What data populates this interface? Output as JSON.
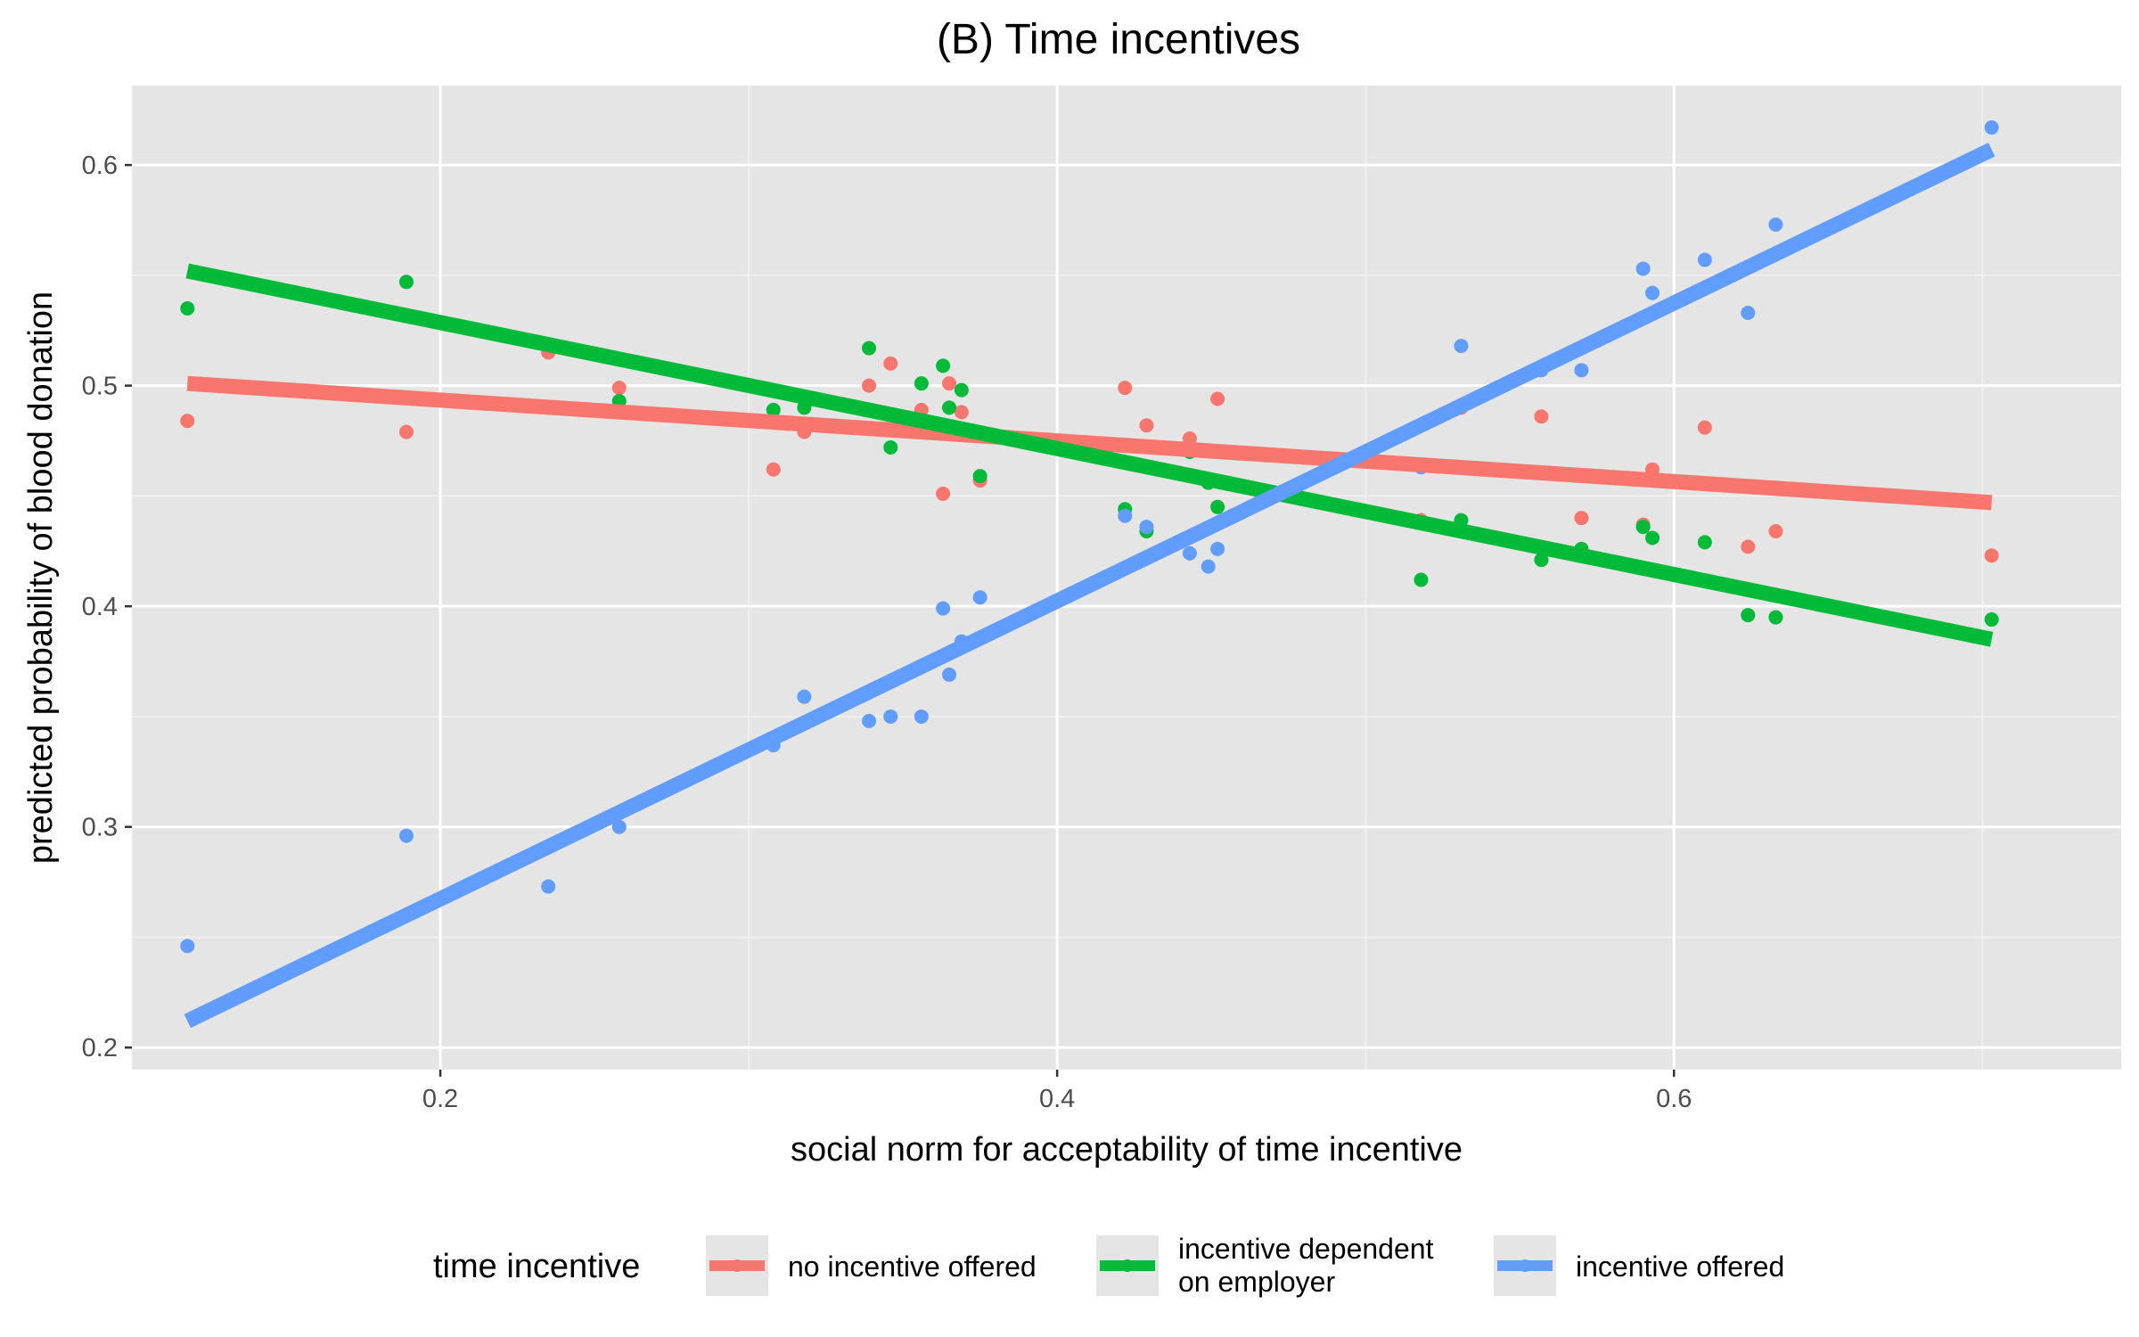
{
  "chart_data": {
    "type": "scatter",
    "title": "(B) Time incentives",
    "xlabel": "social norm for acceptability of time incentive",
    "ylabel": "predicted probability of blood donation",
    "xlim": [
      0.1,
      0.745
    ],
    "ylim": [
      0.19,
      0.636
    ],
    "x_ticks": [
      0.2,
      0.4,
      0.6
    ],
    "x_tick_labels": [
      "0.2",
      "0.4",
      "0.6"
    ],
    "y_ticks": [
      0.2,
      0.3,
      0.4,
      0.5,
      0.6
    ],
    "y_tick_labels": [
      "0.2",
      "0.3",
      "0.4",
      "0.5",
      "0.6"
    ],
    "grid": true,
    "background": "#e5e5e5",
    "legend": {
      "title": "time incentive",
      "position": "bottom",
      "entries": [
        {
          "series": "no incentive offered",
          "lines": [
            "no incentive offered"
          ]
        },
        {
          "series": "incentive dependent on employer",
          "lines": [
            "incentive dependent",
            "on employer"
          ]
        },
        {
          "series": "incentive offered",
          "lines": [
            "incentive offered"
          ]
        }
      ]
    },
    "series": [
      {
        "name": "no incentive offered",
        "color": "#f8766d",
        "fit_line": {
          "x": [
            0.118,
            0.703
          ],
          "y": [
            0.501,
            0.447
          ]
        },
        "points": [
          [
            0.118,
            0.484
          ],
          [
            0.189,
            0.479
          ],
          [
            0.235,
            0.515
          ],
          [
            0.258,
            0.499
          ],
          [
            0.308,
            0.462
          ],
          [
            0.318,
            0.479
          ],
          [
            0.339,
            0.5
          ],
          [
            0.346,
            0.51
          ],
          [
            0.356,
            0.489
          ],
          [
            0.363,
            0.451
          ],
          [
            0.365,
            0.501
          ],
          [
            0.369,
            0.488
          ],
          [
            0.375,
            0.457
          ],
          [
            0.422,
            0.499
          ],
          [
            0.429,
            0.482
          ],
          [
            0.443,
            0.476
          ],
          [
            0.449,
            0.456
          ],
          [
            0.452,
            0.494
          ],
          [
            0.518,
            0.439
          ],
          [
            0.531,
            0.49
          ],
          [
            0.557,
            0.486
          ],
          [
            0.57,
            0.44
          ],
          [
            0.59,
            0.437
          ],
          [
            0.593,
            0.462
          ],
          [
            0.61,
            0.481
          ],
          [
            0.624,
            0.427
          ],
          [
            0.633,
            0.434
          ],
          [
            0.703,
            0.423
          ]
        ]
      },
      {
        "name": "incentive dependent on employer",
        "color": "#00ba38",
        "fit_line": {
          "x": [
            0.118,
            0.703
          ],
          "y": [
            0.552,
            0.385
          ]
        },
        "points": [
          [
            0.118,
            0.535
          ],
          [
            0.189,
            0.547
          ],
          [
            0.235,
            0.49
          ],
          [
            0.258,
            0.493
          ],
          [
            0.308,
            0.489
          ],
          [
            0.318,
            0.49
          ],
          [
            0.339,
            0.517
          ],
          [
            0.346,
            0.472
          ],
          [
            0.356,
            0.501
          ],
          [
            0.363,
            0.509
          ],
          [
            0.365,
            0.49
          ],
          [
            0.369,
            0.498
          ],
          [
            0.375,
            0.459
          ],
          [
            0.422,
            0.444
          ],
          [
            0.429,
            0.434
          ],
          [
            0.443,
            0.47
          ],
          [
            0.449,
            0.456
          ],
          [
            0.452,
            0.445
          ],
          [
            0.518,
            0.412
          ],
          [
            0.531,
            0.439
          ],
          [
            0.557,
            0.421
          ],
          [
            0.57,
            0.426
          ],
          [
            0.59,
            0.436
          ],
          [
            0.593,
            0.431
          ],
          [
            0.61,
            0.429
          ],
          [
            0.624,
            0.396
          ],
          [
            0.633,
            0.395
          ],
          [
            0.703,
            0.394
          ]
        ]
      },
      {
        "name": "incentive offered",
        "color": "#619cff",
        "fit_line": {
          "x": [
            0.118,
            0.703
          ],
          "y": [
            0.212,
            0.607
          ]
        },
        "points": [
          [
            0.118,
            0.246
          ],
          [
            0.189,
            0.296
          ],
          [
            0.235,
            0.273
          ],
          [
            0.258,
            0.3
          ],
          [
            0.308,
            0.337
          ],
          [
            0.318,
            0.359
          ],
          [
            0.339,
            0.348
          ],
          [
            0.346,
            0.35
          ],
          [
            0.356,
            0.35
          ],
          [
            0.363,
            0.399
          ],
          [
            0.365,
            0.369
          ],
          [
            0.369,
            0.384
          ],
          [
            0.375,
            0.404
          ],
          [
            0.422,
            0.441
          ],
          [
            0.429,
            0.436
          ],
          [
            0.443,
            0.424
          ],
          [
            0.449,
            0.418
          ],
          [
            0.452,
            0.426
          ],
          [
            0.518,
            0.463
          ],
          [
            0.531,
            0.518
          ],
          [
            0.557,
            0.507
          ],
          [
            0.57,
            0.507
          ],
          [
            0.59,
            0.553
          ],
          [
            0.593,
            0.542
          ],
          [
            0.61,
            0.557
          ],
          [
            0.624,
            0.533
          ],
          [
            0.633,
            0.573
          ],
          [
            0.703,
            0.617
          ]
        ]
      }
    ]
  }
}
